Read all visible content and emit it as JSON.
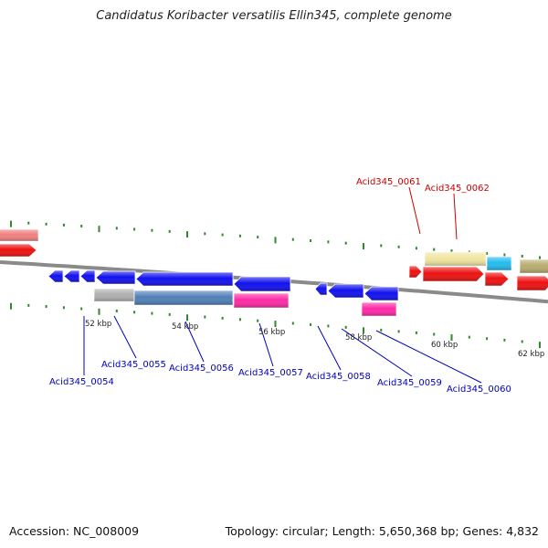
{
  "title": "Candidatus Koribacter versatilis Ellin345, complete genome",
  "footer": {
    "accession": "Accession: NC_008009",
    "summary": "Topology: circular; Length: 5,650,368 bp; Genes: 4,832"
  },
  "colors": {
    "backbone": "#8a8a8a",
    "tick": "#2d8a2d",
    "label_forward": "#cc0000",
    "label_reverse": "#0000bb"
  },
  "scale_labels": [
    "52 kbp",
    "54 kbp",
    "56 kbp",
    "58 kbp",
    "60 kbp",
    "62 kbp"
  ],
  "gene_labels": [
    {
      "id": "Acid345_0054",
      "text": "Acid345_0054",
      "strand": "reverse"
    },
    {
      "id": "Acid345_0055",
      "text": "Acid345_0055",
      "strand": "reverse"
    },
    {
      "id": "Acid345_0056",
      "text": "Acid345_0056",
      "strand": "reverse"
    },
    {
      "id": "Acid345_0057",
      "text": "Acid345_0057",
      "strand": "reverse"
    },
    {
      "id": "Acid345_0058",
      "text": "Acid345_0058",
      "strand": "reverse"
    },
    {
      "id": "Acid345_0059",
      "text": "Acid345_0059",
      "strand": "reverse"
    },
    {
      "id": "Acid345_0060",
      "text": "Acid345_0060",
      "strand": "reverse"
    },
    {
      "id": "Acid345_0061",
      "text": "Acid345_0061",
      "strand": "forward"
    },
    {
      "id": "Acid345_0062",
      "text": "Acid345_0062",
      "strand": "forward"
    }
  ],
  "features": [
    {
      "type": "cds",
      "strand": "forward",
      "color": "#ee1111"
    },
    {
      "type": "cds",
      "strand": "forward",
      "color": "#ee1111"
    },
    {
      "type": "cds",
      "strand": "forward",
      "color": "#ee1111"
    },
    {
      "type": "cds",
      "strand": "forward",
      "color": "#ee1111"
    },
    {
      "type": "cds",
      "strand": "forward",
      "color": "#ee1111"
    },
    {
      "type": "cds",
      "strand": "reverse",
      "color": "#1111ee"
    },
    {
      "type": "cds",
      "strand": "reverse",
      "color": "#1111ee"
    },
    {
      "type": "cds",
      "strand": "reverse",
      "color": "#1111ee"
    },
    {
      "type": "cds",
      "strand": "reverse",
      "color": "#1111ee"
    },
    {
      "type": "cds",
      "strand": "reverse",
      "color": "#1111ee"
    },
    {
      "type": "cds",
      "strand": "reverse",
      "color": "#1111ee"
    },
    {
      "type": "cds",
      "strand": "reverse",
      "color": "#1111ee"
    },
    {
      "type": "cds",
      "strand": "reverse",
      "color": "#1111ee"
    },
    {
      "type": "cds",
      "strand": "reverse",
      "color": "#1111ee"
    },
    {
      "type": "cog",
      "strand": "forward",
      "color": "#f08080"
    },
    {
      "type": "cog",
      "strand": "forward",
      "color": "#f0e6a0"
    },
    {
      "type": "cog",
      "strand": "forward",
      "color": "#22bbee"
    },
    {
      "type": "cog",
      "strand": "forward",
      "color": "#b8ac6e"
    },
    {
      "type": "cog",
      "strand": "reverse",
      "color": "#b0b0b0"
    },
    {
      "type": "cog",
      "strand": "reverse",
      "color": "#4f7fb8"
    },
    {
      "type": "cog",
      "strand": "reverse",
      "color": "#ff2aa6"
    },
    {
      "type": "cog",
      "strand": "reverse",
      "color": "#ff2aa6"
    }
  ]
}
